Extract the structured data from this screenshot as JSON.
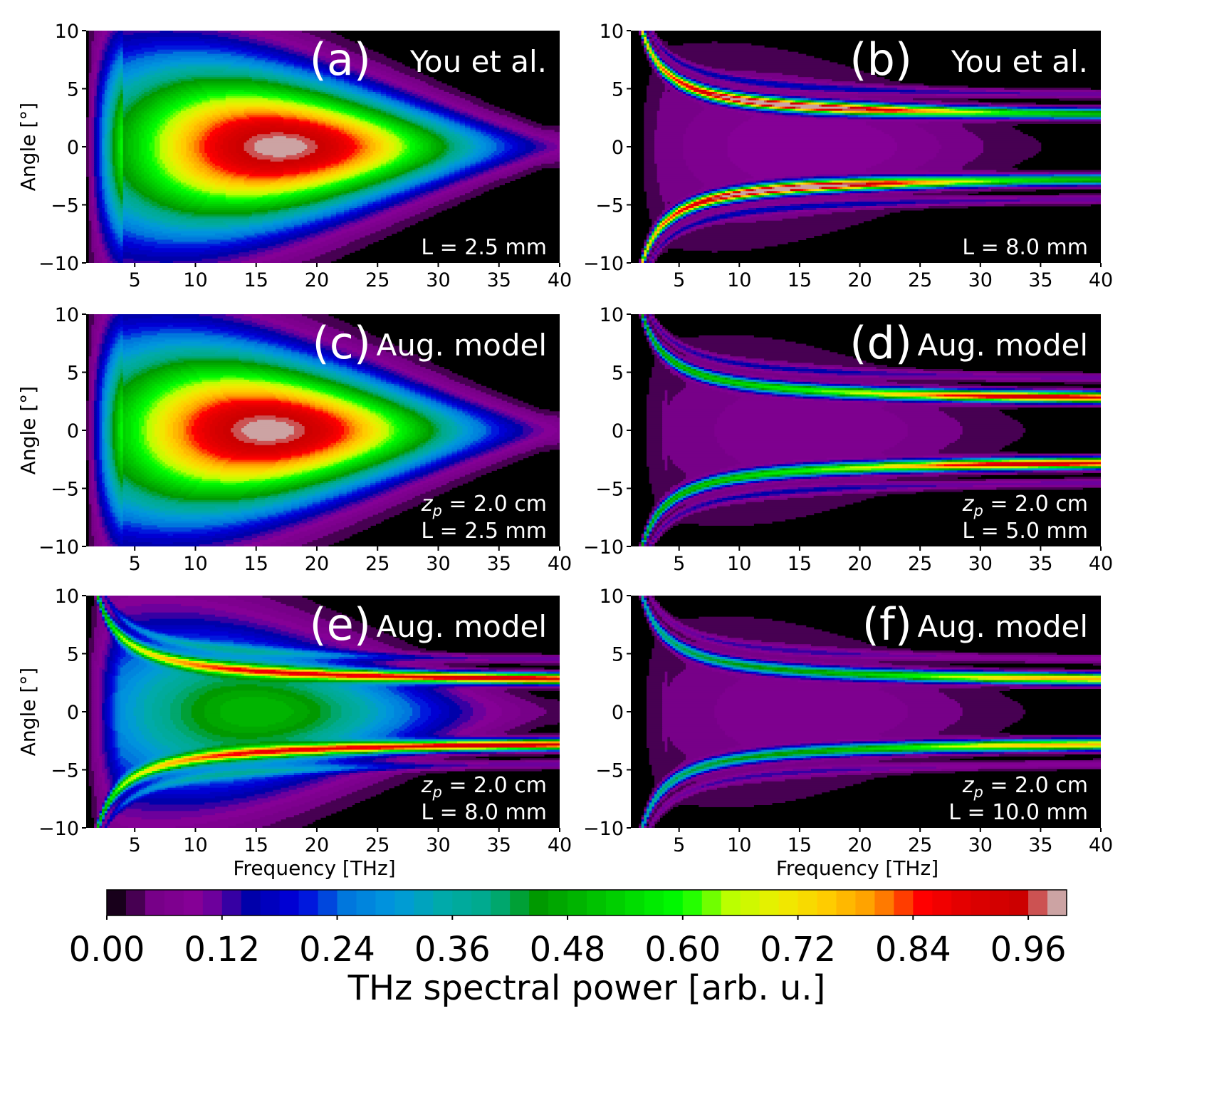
{
  "chart_data": {
    "type": "heatmap",
    "shared": {
      "xlabel": "Frequency [THz]",
      "ylabel": "Angle [°]",
      "xlim": [
        1,
        40
      ],
      "ylim": [
        -10,
        10
      ],
      "xticks": [
        5,
        10,
        15,
        20,
        25,
        30,
        35,
        40
      ],
      "yticks": [
        -10,
        -5,
        0,
        5,
        10
      ],
      "ytick_labels": [
        "−10",
        "−5",
        "0",
        "5",
        "10"
      ]
    },
    "colorbar": {
      "label": "THz spectral power [arb. u.]",
      "min": 0.0,
      "max": 1.0,
      "levels": 50,
      "ticks": [
        "0.00",
        "0.12",
        "0.24",
        "0.36",
        "0.48",
        "0.60",
        "0.72",
        "0.84",
        "0.96"
      ],
      "colormap": "nipy_spectral"
    },
    "panels": [
      {
        "id": "a",
        "letter": "(a)",
        "model": "You et al.",
        "params": [
          "",
          "L = 2.5 mm"
        ],
        "zp": "",
        "length": "2.5 mm",
        "ring_strength": 0.0,
        "center_strength": 1.0,
        "center_peak_freq": 17,
        "has_xlabel": false,
        "has_ylabel": true
      },
      {
        "id": "b",
        "letter": "(b)",
        "model": "You et al.",
        "params": [
          "",
          "L = 8.0 mm"
        ],
        "zp": "",
        "length": "8.0 mm",
        "ring_strength": 1.0,
        "center_strength": 0.1,
        "ring_peak_freq": 14,
        "has_xlabel": false,
        "has_ylabel": false
      },
      {
        "id": "c",
        "letter": "(c)",
        "model": "Aug. model",
        "params": [
          "2.0 cm",
          "L = 2.5 mm"
        ],
        "zp": "2.0 cm",
        "length": "2.5 mm",
        "ring_strength": 0.0,
        "center_strength": 1.0,
        "center_peak_freq": 16,
        "has_xlabel": false,
        "has_ylabel": true
      },
      {
        "id": "d",
        "letter": "(d)",
        "model": "Aug. model",
        "params": [
          "2.0 cm",
          "L = 5.0 mm"
        ],
        "zp": "2.0 cm",
        "length": "5.0 mm",
        "ring_strength": 0.95,
        "center_strength": 0.08,
        "ring_peak_freq": 35,
        "has_xlabel": false,
        "has_ylabel": false
      },
      {
        "id": "e",
        "letter": "(e)",
        "model": "Aug. model",
        "params": [
          "2.0 cm",
          "L = 8.0 mm"
        ],
        "zp": "2.0 cm",
        "length": "8.0 mm",
        "ring_strength": 0.95,
        "center_strength": 0.5,
        "ring_peak_freq": 37,
        "center_peak_freq": 15,
        "has_xlabel": true,
        "has_ylabel": true
      },
      {
        "id": "f",
        "letter": "(f)",
        "model": "Aug. model",
        "params": [
          "2.0 cm",
          "L = 10.0 mm"
        ],
        "zp": "2.0 cm",
        "length": "10.0 mm",
        "ring_strength": 0.78,
        "center_strength": 0.08,
        "ring_peak_freq": 37,
        "has_xlabel": true,
        "has_ylabel": false
      }
    ]
  }
}
